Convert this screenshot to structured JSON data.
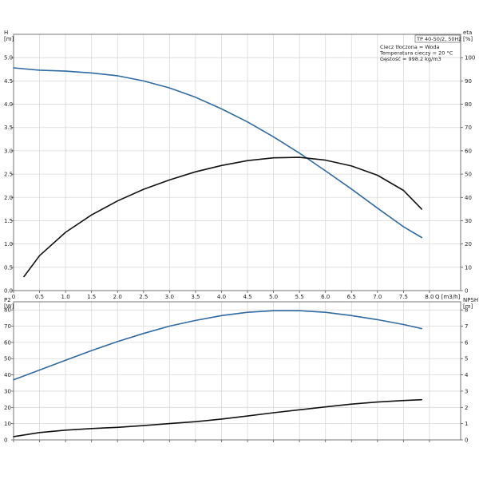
{
  "chart_data": [
    {
      "type": "line",
      "info": {
        "title": "TP 40-50/2, 50Hz",
        "lines": [
          "Ciecz tłoczona = Woda",
          "Temperatura cieczy = 20 °C",
          "Gęstość = 998.2 kg/m3"
        ]
      },
      "xaxis": {
        "label": "Q [m3/h]",
        "ticks": [
          "0",
          "0.5",
          "1.0",
          "1.5",
          "2.0",
          "2.5",
          "3.0",
          "3.5",
          "4.0",
          "4.5",
          "5.0",
          "5.5",
          "6.0",
          "6.5",
          "7.0",
          "7.5",
          "8.0"
        ],
        "range": [
          0,
          8.6
        ]
      },
      "yaxis_left": {
        "label_line1": "H",
        "label_line2": "[m]",
        "ticks": [
          "0.0",
          "0.5",
          "1.0",
          "1.5",
          "2.0",
          "2.5",
          "3.0",
          "3.5",
          "4.0",
          "4.5",
          "5.0"
        ],
        "range": [
          0,
          5.5
        ]
      },
      "yaxis_right": {
        "label_line1": "eta",
        "label_line2": "[%]",
        "ticks": [
          "0",
          "10",
          "20",
          "30",
          "40",
          "50",
          "60",
          "70",
          "80",
          "90",
          "100"
        ],
        "range": [
          0,
          110
        ]
      },
      "grid": true,
      "series": [
        {
          "axis": "left",
          "color": "#2f6aa3",
          "points": [
            [
              0,
              4.78
            ],
            [
              0.5,
              4.73
            ],
            [
              1.0,
              4.71
            ],
            [
              1.5,
              4.67
            ],
            [
              2.0,
              4.61
            ],
            [
              2.5,
              4.5
            ],
            [
              3.0,
              4.35
            ],
            [
              3.5,
              4.15
            ],
            [
              4.0,
              3.9
            ],
            [
              4.5,
              3.62
            ],
            [
              5.0,
              3.3
            ],
            [
              5.5,
              2.95
            ],
            [
              6.0,
              2.57
            ],
            [
              6.5,
              2.18
            ],
            [
              7.0,
              1.77
            ],
            [
              7.5,
              1.37
            ],
            [
              7.85,
              1.14
            ]
          ]
        },
        {
          "axis": "right",
          "color": "#111111",
          "points": [
            [
              0.2,
              6
            ],
            [
              0.5,
              15
            ],
            [
              1.0,
              25
            ],
            [
              1.5,
              32.5
            ],
            [
              2.0,
              38.5
            ],
            [
              2.5,
              43.5
            ],
            [
              3.0,
              47.5
            ],
            [
              3.5,
              51
            ],
            [
              4.0,
              53.7
            ],
            [
              4.5,
              55.8
            ],
            [
              5.0,
              57
            ],
            [
              5.5,
              57.2
            ],
            [
              6.0,
              56
            ],
            [
              6.5,
              53.5
            ],
            [
              7.0,
              49.5
            ],
            [
              7.5,
              43
            ],
            [
              7.85,
              35
            ]
          ]
        }
      ]
    },
    {
      "type": "line",
      "xaxis": {
        "range": [
          0,
          8.6
        ]
      },
      "yaxis_left": {
        "label_line1": "P2",
        "label_line2": "[W]",
        "ticks": [
          "0",
          "10",
          "20",
          "30",
          "40",
          "50",
          "60",
          "70",
          "80"
        ],
        "range": [
          0,
          85
        ]
      },
      "yaxis_right": {
        "label_line1": "NPSH",
        "label_line2": "[m]",
        "ticks": [
          "0",
          "1",
          "2",
          "3",
          "4",
          "5",
          "6",
          "7",
          "8"
        ],
        "range": [
          0,
          8.5
        ]
      },
      "grid": true,
      "series": [
        {
          "axis": "left",
          "color": "#2f6aa3",
          "points": [
            [
              0,
              37
            ],
            [
              0.5,
              43
            ],
            [
              1.0,
              49
            ],
            [
              1.5,
              55
            ],
            [
              2.0,
              60.5
            ],
            [
              2.5,
              65.5
            ],
            [
              3.0,
              70
            ],
            [
              3.5,
              73.5
            ],
            [
              4.0,
              76.5
            ],
            [
              4.5,
              78.5
            ],
            [
              5.0,
              79.5
            ],
            [
              5.5,
              79.5
            ],
            [
              6.0,
              78.5
            ],
            [
              6.5,
              76.5
            ],
            [
              7.0,
              74
            ],
            [
              7.5,
              71
            ],
            [
              7.85,
              68.5
            ]
          ]
        },
        {
          "axis": "right",
          "color": "#111111",
          "points": [
            [
              0,
              0.2
            ],
            [
              0.5,
              0.45
            ],
            [
              1.0,
              0.6
            ],
            [
              1.5,
              0.7
            ],
            [
              2.0,
              0.77
            ],
            [
              2.5,
              0.88
            ],
            [
              3.0,
              1.0
            ],
            [
              3.5,
              1.12
            ],
            [
              4.0,
              1.28
            ],
            [
              4.5,
              1.47
            ],
            [
              5.0,
              1.67
            ],
            [
              5.5,
              1.85
            ],
            [
              6.0,
              2.03
            ],
            [
              6.5,
              2.2
            ],
            [
              7.0,
              2.33
            ],
            [
              7.5,
              2.42
            ],
            [
              7.85,
              2.47
            ]
          ]
        }
      ]
    }
  ]
}
